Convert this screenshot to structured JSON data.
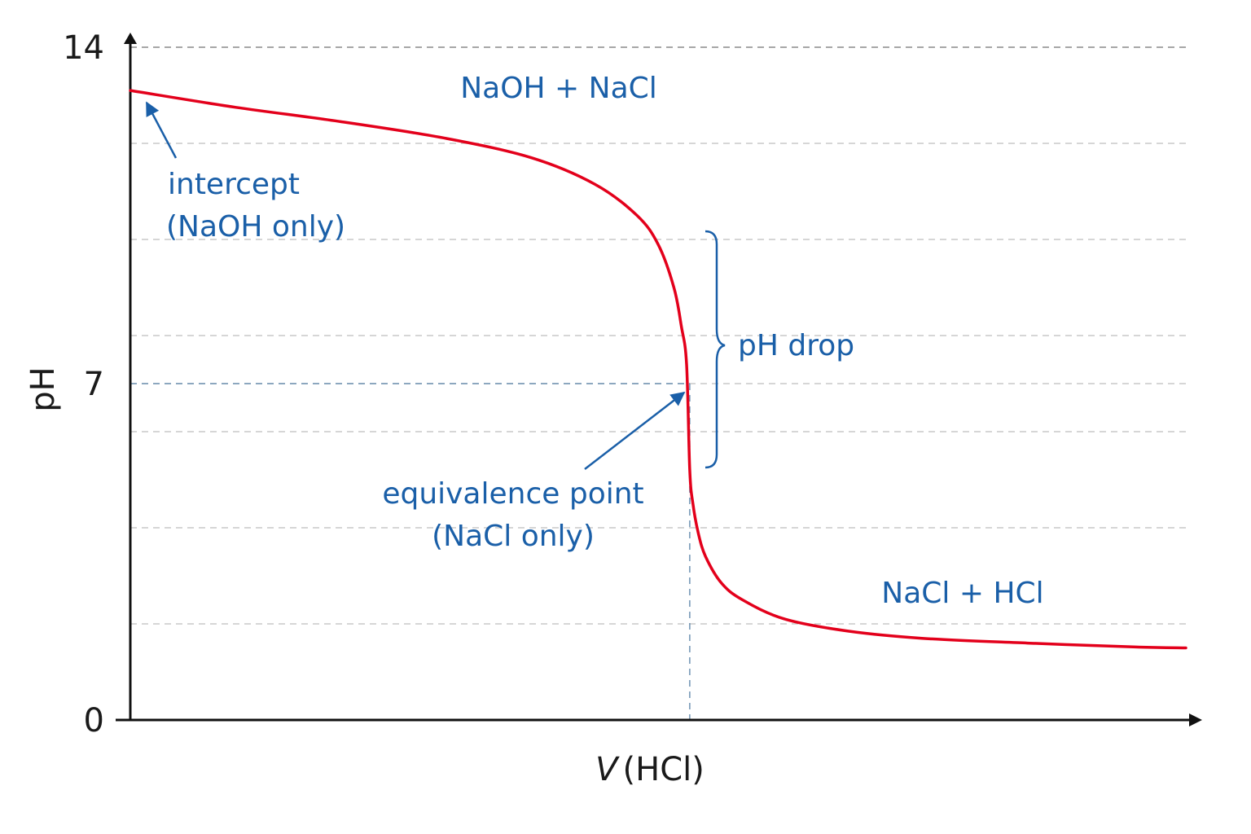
{
  "chart_data": {
    "type": "line",
    "title": "",
    "xlabel_italic": "V",
    "xlabel_rest": "(HCl)",
    "ylabel": "pH",
    "ylim": [
      0,
      14
    ],
    "yticks": [
      "0",
      "7",
      "14"
    ],
    "grid": true,
    "equivalence": {
      "x": 0.53,
      "pH": 7
    },
    "series": [
      {
        "color": "#e3001b",
        "x": [
          0.0,
          0.1,
          0.2,
          0.3,
          0.38,
          0.44,
          0.48,
          0.5,
          0.515,
          0.522,
          0.527,
          0.53,
          0.533,
          0.538,
          0.545,
          0.56,
          0.58,
          0.62,
          0.68,
          0.75,
          0.85,
          0.95,
          1.0
        ],
        "y": [
          13.1,
          12.75,
          12.45,
          12.1,
          11.7,
          11.15,
          10.5,
          9.9,
          9.0,
          8.2,
          7.4,
          5.2,
          4.5,
          3.9,
          3.4,
          2.85,
          2.5,
          2.1,
          1.85,
          1.7,
          1.6,
          1.52,
          1.5
        ]
      }
    ],
    "annotations": {
      "top_region": "NaOH + NaCl",
      "intercept_line1": "intercept",
      "intercept_line2": "(NaOH only)",
      "ph_drop": "pH drop",
      "equivalence_line1": "equivalence point",
      "equivalence_line2": "(NaCl only)",
      "bottom_region": "NaCl + HCl"
    },
    "colors": {
      "curve": "#e3001b",
      "annotation": "#1a5fa8",
      "axis": "#111111"
    }
  }
}
